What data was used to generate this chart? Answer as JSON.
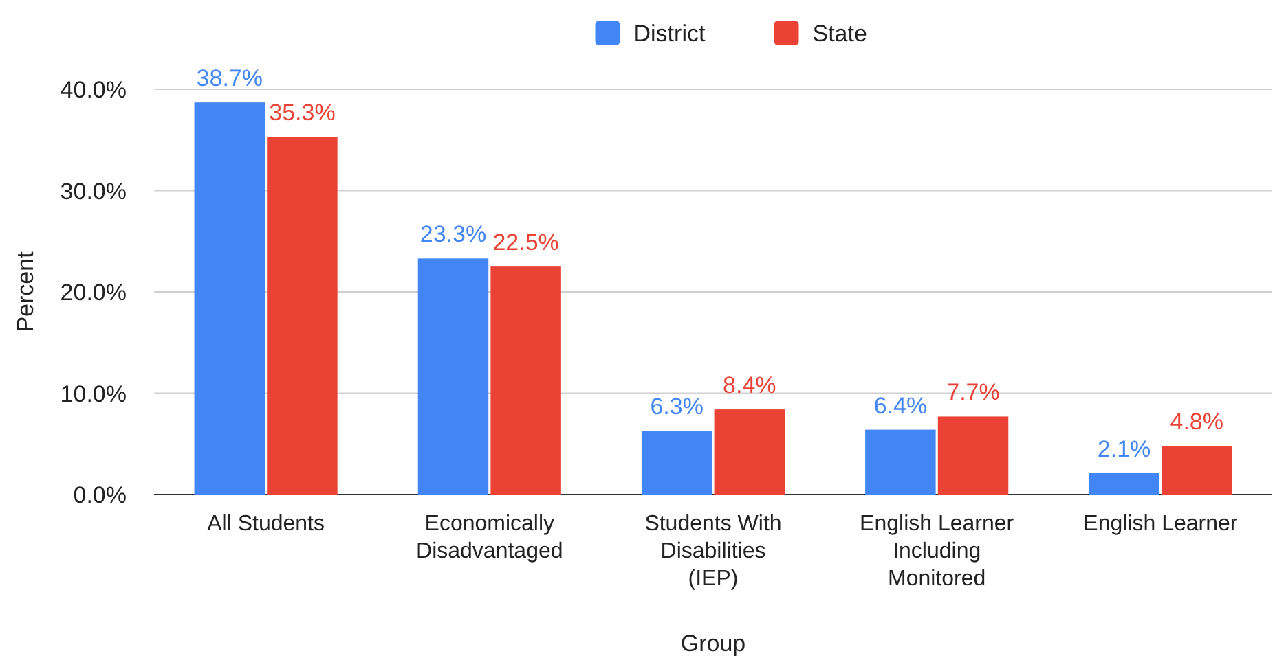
{
  "chart_data": {
    "type": "bar",
    "xlabel": "Group",
    "ylabel": "Percent",
    "categories": [
      "All Students",
      "Economically Disadvantaged",
      "Students With Disabilities (IEP)",
      "English Learner Including Monitored",
      "English Learner"
    ],
    "series": [
      {
        "name": "District",
        "color": "#4285f4",
        "values": [
          38.7,
          23.3,
          6.3,
          6.4,
          2.1
        ],
        "value_labels": [
          "38.7%",
          "23.3%",
          "6.3%",
          "6.4%",
          "2.1%"
        ]
      },
      {
        "name": "State",
        "color": "#ea4335",
        "values": [
          35.3,
          22.5,
          8.4,
          7.7,
          4.8
        ],
        "value_labels": [
          "35.3%",
          "22.5%",
          "8.4%",
          "7.7%",
          "4.8%"
        ]
      }
    ],
    "ylim": [
      0,
      40
    ],
    "yticks": [
      {
        "value": 0,
        "label": "0.0%"
      },
      {
        "value": 10,
        "label": "10.0%"
      },
      {
        "value": 20,
        "label": "20.0%"
      },
      {
        "value": 30,
        "label": "30.0%"
      },
      {
        "value": 40,
        "label": "40.0%"
      }
    ],
    "grid": "y",
    "legend": "top"
  }
}
